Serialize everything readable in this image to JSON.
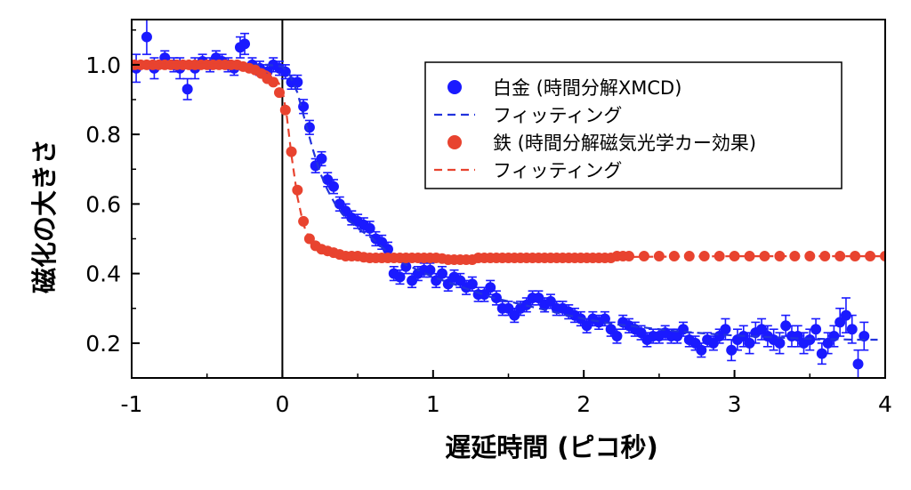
{
  "chart_data": {
    "type": "scatter",
    "xlabel": "遅延時間 (ピコ秒)",
    "ylabel": "磁化の大きさ",
    "xlim": [
      -1,
      4
    ],
    "ylim": [
      0.1,
      1.13
    ],
    "xticks": [
      "-1",
      "0",
      "1",
      "2",
      "3",
      "4"
    ],
    "xtick_values": [
      -1,
      0,
      1,
      2,
      3,
      4
    ],
    "yticks": [
      "0.2",
      "0.4",
      "0.6",
      "0.8",
      "1.0"
    ],
    "ytick_values": [
      0.2,
      0.4,
      0.6,
      0.8,
      1.0
    ],
    "grid": false,
    "legend_position": "top-right",
    "zero_line_x": 0,
    "series": [
      {
        "name": "白金 (時間分解XMCD)",
        "kind": "points",
        "color": "#1a1aff",
        "x": [
          -0.97,
          -0.9,
          -0.85,
          -0.78,
          -0.72,
          -0.68,
          -0.63,
          -0.58,
          -0.53,
          -0.48,
          -0.44,
          -0.4,
          -0.36,
          -0.32,
          -0.28,
          -0.25,
          -0.2,
          -0.15,
          -0.1,
          -0.06,
          -0.02,
          0.02,
          0.06,
          0.1,
          0.14,
          0.18,
          0.22,
          0.26,
          0.3,
          0.34,
          0.38,
          0.42,
          0.46,
          0.5,
          0.54,
          0.58,
          0.62,
          0.66,
          0.7,
          0.74,
          0.78,
          0.82,
          0.86,
          0.9,
          0.94,
          0.98,
          1.02,
          1.06,
          1.1,
          1.14,
          1.18,
          1.22,
          1.26,
          1.3,
          1.34,
          1.38,
          1.42,
          1.46,
          1.5,
          1.54,
          1.58,
          1.62,
          1.66,
          1.7,
          1.74,
          1.78,
          1.82,
          1.86,
          1.9,
          1.94,
          1.98,
          2.02,
          2.06,
          2.1,
          2.14,
          2.18,
          2.22,
          2.26,
          2.3,
          2.34,
          2.38,
          2.42,
          2.46,
          2.5,
          2.54,
          2.58,
          2.62,
          2.66,
          2.7,
          2.74,
          2.78,
          2.82,
          2.86,
          2.9,
          2.94,
          2.98,
          3.02,
          3.06,
          3.1,
          3.14,
          3.18,
          3.22,
          3.26,
          3.3,
          3.34,
          3.38,
          3.42,
          3.46,
          3.5,
          3.54,
          3.58,
          3.62,
          3.66,
          3.7,
          3.74,
          3.78,
          3.82,
          3.86
        ],
        "y": [
          0.99,
          1.08,
          0.99,
          1.02,
          1.0,
          0.99,
          0.93,
          0.99,
          1.01,
          1.0,
          1.02,
          1.01,
          1.0,
          0.99,
          1.05,
          1.06,
          1.0,
          0.99,
          0.98,
          1.0,
          0.99,
          0.98,
          0.95,
          0.95,
          0.88,
          0.82,
          0.71,
          0.73,
          0.67,
          0.65,
          0.6,
          0.58,
          0.56,
          0.55,
          0.54,
          0.53,
          0.5,
          0.49,
          0.47,
          0.4,
          0.39,
          0.42,
          0.38,
          0.4,
          0.41,
          0.41,
          0.38,
          0.4,
          0.37,
          0.39,
          0.38,
          0.36,
          0.37,
          0.34,
          0.34,
          0.36,
          0.33,
          0.3,
          0.3,
          0.28,
          0.3,
          0.31,
          0.33,
          0.33,
          0.31,
          0.32,
          0.3,
          0.3,
          0.29,
          0.28,
          0.27,
          0.25,
          0.27,
          0.26,
          0.27,
          0.24,
          0.22,
          0.26,
          0.25,
          0.24,
          0.23,
          0.21,
          0.22,
          0.22,
          0.23,
          0.22,
          0.22,
          0.24,
          0.21,
          0.2,
          0.18,
          0.21,
          0.2,
          0.22,
          0.24,
          0.18,
          0.21,
          0.22,
          0.2,
          0.23,
          0.24,
          0.22,
          0.21,
          0.2,
          0.25,
          0.22,
          0.22,
          0.2,
          0.21,
          0.24,
          0.17,
          0.2,
          0.22,
          0.26,
          0.28,
          0.24,
          0.14,
          0.22
        ],
        "err": [
          0.04,
          0.05,
          0.03,
          0.02,
          0.02,
          0.03,
          0.03,
          0.03,
          0.02,
          0.02,
          0.02,
          0.02,
          0.02,
          0.02,
          0.03,
          0.03,
          0.02,
          0.02,
          0.02,
          0.02,
          0.02,
          0.02,
          0.02,
          0.02,
          0.02,
          0.02,
          0.02,
          0.02,
          0.02,
          0.02,
          0.02,
          0.02,
          0.02,
          0.02,
          0.02,
          0.02,
          0.02,
          0.02,
          0.02,
          0.02,
          0.02,
          0.02,
          0.02,
          0.02,
          0.02,
          0.02,
          0.02,
          0.02,
          0.02,
          0.02,
          0.02,
          0.02,
          0.02,
          0.02,
          0.02,
          0.02,
          0.02,
          0.02,
          0.02,
          0.02,
          0.02,
          0.02,
          0.02,
          0.02,
          0.02,
          0.02,
          0.02,
          0.02,
          0.02,
          0.02,
          0.02,
          0.02,
          0.02,
          0.02,
          0.02,
          0.02,
          0.02,
          0.02,
          0.02,
          0.02,
          0.02,
          0.02,
          0.02,
          0.02,
          0.02,
          0.02,
          0.02,
          0.02,
          0.02,
          0.02,
          0.02,
          0.02,
          0.02,
          0.02,
          0.03,
          0.03,
          0.03,
          0.03,
          0.03,
          0.03,
          0.03,
          0.03,
          0.03,
          0.03,
          0.03,
          0.03,
          0.03,
          0.03,
          0.03,
          0.03,
          0.03,
          0.03,
          0.03,
          0.04,
          0.05,
          0.04,
          0.04,
          0.04
        ]
      },
      {
        "name": "フィッティング",
        "kind": "dashed-line",
        "color": "#2233dd",
        "x": [
          -1,
          -0.2,
          -0.1,
          0,
          0.05,
          0.1,
          0.15,
          0.2,
          0.25,
          0.3,
          0.35,
          0.4,
          0.5,
          0.6,
          0.7,
          0.8,
          0.9,
          1.0,
          1.2,
          1.4,
          1.6,
          1.8,
          2.0,
          2.2,
          2.4,
          2.6,
          2.8,
          3.0,
          3.2,
          3.4,
          3.6,
          3.8,
          3.95
        ],
        "y": [
          1.0,
          1.0,
          1.0,
          0.995,
          0.97,
          0.92,
          0.84,
          0.76,
          0.69,
          0.64,
          0.6,
          0.57,
          0.53,
          0.5,
          0.46,
          0.43,
          0.41,
          0.39,
          0.36,
          0.33,
          0.31,
          0.29,
          0.27,
          0.255,
          0.245,
          0.235,
          0.228,
          0.222,
          0.218,
          0.214,
          0.212,
          0.21,
          0.21
        ]
      },
      {
        "name": "鉄 (時間分解磁気光学カー効果)",
        "kind": "points",
        "color": "#e8432f",
        "x": [
          -0.98,
          -0.94,
          -0.9,
          -0.86,
          -0.82,
          -0.78,
          -0.74,
          -0.7,
          -0.66,
          -0.62,
          -0.58,
          -0.54,
          -0.5,
          -0.46,
          -0.42,
          -0.38,
          -0.34,
          -0.3,
          -0.26,
          -0.22,
          -0.18,
          -0.14,
          -0.1,
          -0.06,
          -0.02,
          0.02,
          0.06,
          0.1,
          0.14,
          0.18,
          0.22,
          0.26,
          0.3,
          0.34,
          0.38,
          0.42,
          0.46,
          0.5,
          0.54,
          0.58,
          0.62,
          0.66,
          0.7,
          0.74,
          0.78,
          0.82,
          0.86,
          0.9,
          0.94,
          0.98,
          1.02,
          1.06,
          1.1,
          1.14,
          1.18,
          1.22,
          1.26,
          1.3,
          1.34,
          1.38,
          1.42,
          1.46,
          1.5,
          1.54,
          1.58,
          1.62,
          1.66,
          1.7,
          1.74,
          1.78,
          1.82,
          1.86,
          1.9,
          1.94,
          1.98,
          2.02,
          2.06,
          2.1,
          2.14,
          2.18,
          2.22,
          2.26,
          2.3,
          2.4,
          2.5,
          2.6,
          2.7,
          2.8,
          2.9,
          3.0,
          3.1,
          3.2,
          3.3,
          3.4,
          3.5,
          3.6,
          3.7,
          3.8,
          3.9,
          4.0
        ],
        "y": [
          1.0,
          1.0,
          1.0,
          1.0,
          1.0,
          1.0,
          1.0,
          1.0,
          1.0,
          1.0,
          1.0,
          1.0,
          1.0,
          1.0,
          1.0,
          1.0,
          1.0,
          1.0,
          0.995,
          0.99,
          0.985,
          0.975,
          0.96,
          0.95,
          0.92,
          0.87,
          0.75,
          0.64,
          0.55,
          0.5,
          0.48,
          0.47,
          0.465,
          0.46,
          0.455,
          0.45,
          0.45,
          0.45,
          0.447,
          0.445,
          0.445,
          0.445,
          0.445,
          0.445,
          0.445,
          0.445,
          0.445,
          0.445,
          0.445,
          0.445,
          0.445,
          0.443,
          0.44,
          0.44,
          0.44,
          0.44,
          0.44,
          0.445,
          0.445,
          0.445,
          0.445,
          0.445,
          0.445,
          0.445,
          0.445,
          0.445,
          0.445,
          0.445,
          0.445,
          0.445,
          0.445,
          0.445,
          0.445,
          0.445,
          0.445,
          0.445,
          0.445,
          0.445,
          0.445,
          0.445,
          0.45,
          0.45,
          0.45,
          0.45,
          0.45,
          0.45,
          0.45,
          0.45,
          0.45,
          0.45,
          0.45,
          0.45,
          0.45,
          0.45,
          0.45,
          0.45,
          0.45,
          0.45,
          0.45,
          0.45
        ]
      },
      {
        "name": "フィッティング",
        "kind": "dashed-line",
        "color": "#e8432f",
        "x": [
          -1,
          -0.3,
          -0.2,
          -0.1,
          -0.05,
          0,
          0.03,
          0.06,
          0.1,
          0.14,
          0.18,
          0.22,
          0.28,
          0.35,
          0.45,
          0.6,
          0.8,
          1.0,
          1.5,
          2.0,
          3.0,
          4.0
        ],
        "y": [
          1.0,
          1.0,
          0.995,
          0.98,
          0.965,
          0.93,
          0.85,
          0.74,
          0.62,
          0.54,
          0.5,
          0.478,
          0.465,
          0.456,
          0.45,
          0.447,
          0.445,
          0.445,
          0.445,
          0.447,
          0.45,
          0.45
        ]
      }
    ]
  }
}
